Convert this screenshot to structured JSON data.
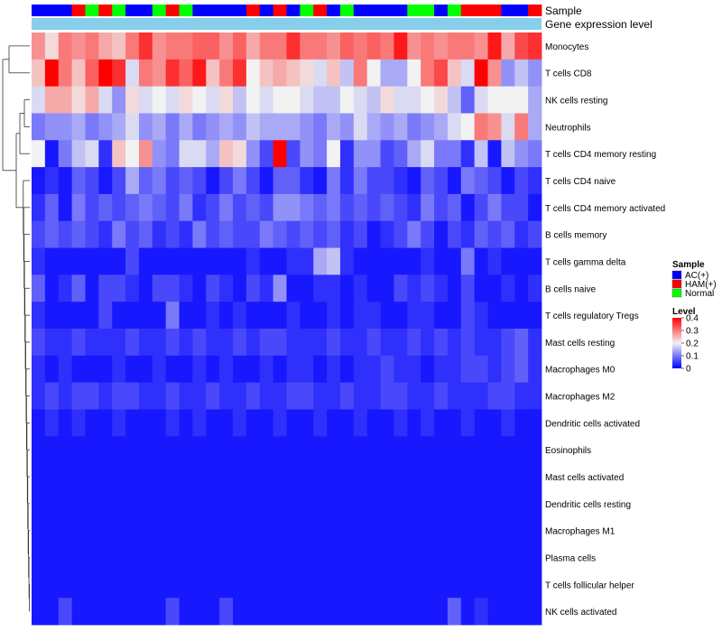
{
  "chart_data": {
    "type": "heatmap",
    "title": "",
    "annotation_tracks": [
      {
        "name": "Sample",
        "label": "Sample"
      },
      {
        "name": "Gene expression level",
        "label": "Gene expression level"
      }
    ],
    "row_labels": [
      "Monocytes",
      "T cells CD8",
      "NK cells resting",
      "Neutrophils",
      "T cells CD4 memory resting",
      "T cells CD4 naive",
      "T cells CD4 memory activated",
      "B cells memory",
      "T cells gamma delta",
      "B cells naive",
      "T cells regulatory  Tregs",
      "Mast cells resting",
      "Macrophages M0",
      "Macrophages M2",
      "Dendritic cells activated",
      "Eosinophils",
      "Mast cells activated",
      "Dendritic cells resting",
      "Macrophages M1",
      "Plasma cells",
      "T cells follicular helper",
      "NK cells activated"
    ],
    "sample_groups": [
      "AC",
      "AC",
      "AC",
      "HAM",
      "Normal",
      "HAM",
      "Normal",
      "AC",
      "AC",
      "Normal",
      "HAM",
      "Normal",
      "AC",
      "AC",
      "AC",
      "AC",
      "HAM",
      "AC",
      "HAM",
      "AC",
      "Normal",
      "HAM",
      "AC",
      "Normal",
      "AC",
      "AC",
      "AC",
      "AC",
      "Normal",
      "Normal",
      "AC",
      "Normal",
      "HAM",
      "HAM",
      "HAM",
      "AC",
      "AC",
      "HAM"
    ],
    "values": [
      [
        0.28,
        0.22,
        0.3,
        0.28,
        0.3,
        0.26,
        0.24,
        0.3,
        0.36,
        0.28,
        0.3,
        0.3,
        0.32,
        0.32,
        0.28,
        0.32,
        0.26,
        0.3,
        0.3,
        0.36,
        0.3,
        0.3,
        0.28,
        0.32,
        0.3,
        0.32,
        0.3,
        0.38,
        0.28,
        0.3,
        0.28,
        0.3,
        0.3,
        0.28,
        0.38,
        0.26,
        0.34,
        0.36
      ],
      [
        0.24,
        0.4,
        0.3,
        0.24,
        0.32,
        0.4,
        0.36,
        0.18,
        0.3,
        0.28,
        0.36,
        0.32,
        0.38,
        0.24,
        0.3,
        0.36,
        0.2,
        0.24,
        0.26,
        0.24,
        0.22,
        0.18,
        0.24,
        0.16,
        0.3,
        0.2,
        0.14,
        0.14,
        0.2,
        0.3,
        0.34,
        0.24,
        0.18,
        0.4,
        0.28,
        0.12,
        0.16,
        0.12
      ],
      [
        0.18,
        0.26,
        0.26,
        0.22,
        0.26,
        0.18,
        0.12,
        0.22,
        0.18,
        0.2,
        0.18,
        0.22,
        0.2,
        0.18,
        0.22,
        0.16,
        0.2,
        0.18,
        0.2,
        0.2,
        0.18,
        0.16,
        0.16,
        0.2,
        0.18,
        0.16,
        0.22,
        0.18,
        0.18,
        0.2,
        0.22,
        0.16,
        0.08,
        0.18,
        0.2,
        0.2,
        0.2,
        0.14
      ],
      [
        0.1,
        0.12,
        0.12,
        0.14,
        0.1,
        0.12,
        0.14,
        0.18,
        0.12,
        0.14,
        0.1,
        0.14,
        0.1,
        0.12,
        0.14,
        0.12,
        0.16,
        0.14,
        0.14,
        0.14,
        0.12,
        0.1,
        0.14,
        0.12,
        0.18,
        0.14,
        0.12,
        0.14,
        0.1,
        0.12,
        0.14,
        0.18,
        0.2,
        0.3,
        0.28,
        0.18,
        0.3,
        0.14
      ],
      [
        0.2,
        0.02,
        0.1,
        0.16,
        0.18,
        0.04,
        0.24,
        0.2,
        0.28,
        0.12,
        0.1,
        0.18,
        0.18,
        0.14,
        0.24,
        0.22,
        0.12,
        0.06,
        0.4,
        0.06,
        0.12,
        0.1,
        0.2,
        0.04,
        0.12,
        0.12,
        0.06,
        0.08,
        0.14,
        0.18,
        0.1,
        0.1,
        0.04,
        0.16,
        0.02,
        0.16,
        0.12,
        0.1
      ],
      [
        0.02,
        0.04,
        0.02,
        0.08,
        0.06,
        0.02,
        0.06,
        0.14,
        0.08,
        0.1,
        0.06,
        0.08,
        0.06,
        0.02,
        0.06,
        0.1,
        0.06,
        0.02,
        0.08,
        0.08,
        0.04,
        0.02,
        0.1,
        0.04,
        0.1,
        0.06,
        0.06,
        0.04,
        0.02,
        0.08,
        0.06,
        0.02,
        0.1,
        0.08,
        0.06,
        0.02,
        0.06,
        0.04
      ],
      [
        0.04,
        0.08,
        0.02,
        0.1,
        0.06,
        0.08,
        0.06,
        0.08,
        0.1,
        0.08,
        0.06,
        0.1,
        0.04,
        0.06,
        0.1,
        0.06,
        0.08,
        0.06,
        0.12,
        0.12,
        0.1,
        0.08,
        0.1,
        0.06,
        0.08,
        0.06,
        0.08,
        0.06,
        0.04,
        0.1,
        0.06,
        0.08,
        0.02,
        0.06,
        0.1,
        0.06,
        0.06,
        0.02
      ],
      [
        0.06,
        0.08,
        0.06,
        0.08,
        0.06,
        0.04,
        0.1,
        0.06,
        0.08,
        0.04,
        0.06,
        0.04,
        0.1,
        0.06,
        0.08,
        0.06,
        0.06,
        0.1,
        0.08,
        0.06,
        0.08,
        0.06,
        0.08,
        0.04,
        0.06,
        0.02,
        0.04,
        0.06,
        0.1,
        0.06,
        0.02,
        0.06,
        0.04,
        0.08,
        0.06,
        0.08,
        0.04,
        0.06
      ],
      [
        0.04,
        0.02,
        0.02,
        0.02,
        0.02,
        0.02,
        0.02,
        0.06,
        0.02,
        0.02,
        0.02,
        0.02,
        0.02,
        0.02,
        0.02,
        0.02,
        0.04,
        0.02,
        0.02,
        0.04,
        0.04,
        0.14,
        0.16,
        0.04,
        0.02,
        0.02,
        0.02,
        0.02,
        0.02,
        0.04,
        0.02,
        0.02,
        0.1,
        0.02,
        0.04,
        0.02,
        0.02,
        0.02
      ],
      [
        0.08,
        0.02,
        0.04,
        0.08,
        0.02,
        0.06,
        0.06,
        0.04,
        0.02,
        0.06,
        0.06,
        0.04,
        0.02,
        0.06,
        0.04,
        0.02,
        0.06,
        0.04,
        0.12,
        0.02,
        0.02,
        0.04,
        0.04,
        0.02,
        0.04,
        0.02,
        0.02,
        0.06,
        0.04,
        0.06,
        0.04,
        0.02,
        0.06,
        0.02,
        0.02,
        0.04,
        0.02,
        0.04
      ],
      [
        0.04,
        0.02,
        0.02,
        0.02,
        0.02,
        0.06,
        0.02,
        0.02,
        0.02,
        0.02,
        0.1,
        0.02,
        0.02,
        0.04,
        0.02,
        0.04,
        0.02,
        0.02,
        0.02,
        0.04,
        0.02,
        0.02,
        0.04,
        0.02,
        0.04,
        0.04,
        0.02,
        0.02,
        0.04,
        0.04,
        0.02,
        0.02,
        0.06,
        0.04,
        0.02,
        0.02,
        0.02,
        0.02
      ],
      [
        0.06,
        0.04,
        0.04,
        0.06,
        0.04,
        0.04,
        0.04,
        0.06,
        0.04,
        0.04,
        0.06,
        0.04,
        0.06,
        0.04,
        0.04,
        0.06,
        0.04,
        0.06,
        0.06,
        0.04,
        0.04,
        0.04,
        0.06,
        0.04,
        0.04,
        0.06,
        0.04,
        0.04,
        0.06,
        0.04,
        0.06,
        0.04,
        0.06,
        0.04,
        0.04,
        0.06,
        0.08,
        0.04
      ],
      [
        0.04,
        0.02,
        0.04,
        0.02,
        0.02,
        0.02,
        0.04,
        0.02,
        0.02,
        0.04,
        0.02,
        0.02,
        0.04,
        0.02,
        0.04,
        0.02,
        0.02,
        0.04,
        0.02,
        0.04,
        0.04,
        0.02,
        0.04,
        0.02,
        0.04,
        0.04,
        0.06,
        0.04,
        0.04,
        0.02,
        0.04,
        0.04,
        0.06,
        0.06,
        0.04,
        0.06,
        0.08,
        0.04
      ],
      [
        0.04,
        0.06,
        0.04,
        0.06,
        0.06,
        0.04,
        0.06,
        0.06,
        0.04,
        0.04,
        0.06,
        0.04,
        0.04,
        0.06,
        0.04,
        0.04,
        0.06,
        0.04,
        0.04,
        0.06,
        0.06,
        0.04,
        0.04,
        0.06,
        0.04,
        0.04,
        0.06,
        0.06,
        0.04,
        0.04,
        0.06,
        0.04,
        0.04,
        0.04,
        0.06,
        0.06,
        0.04,
        0.04
      ],
      [
        0.02,
        0.04,
        0.02,
        0.04,
        0.02,
        0.02,
        0.04,
        0.02,
        0.02,
        0.02,
        0.04,
        0.02,
        0.04,
        0.02,
        0.02,
        0.04,
        0.02,
        0.02,
        0.04,
        0.02,
        0.02,
        0.04,
        0.02,
        0.02,
        0.04,
        0.02,
        0.02,
        0.04,
        0.02,
        0.04,
        0.02,
        0.02,
        0.04,
        0.02,
        0.02,
        0.04,
        0.02,
        0.02
      ],
      [
        0.02,
        0.02,
        0.02,
        0.02,
        0.02,
        0.02,
        0.02,
        0.02,
        0.02,
        0.02,
        0.02,
        0.02,
        0.02,
        0.02,
        0.02,
        0.02,
        0.02,
        0.02,
        0.02,
        0.02,
        0.02,
        0.02,
        0.02,
        0.02,
        0.02,
        0.02,
        0.02,
        0.02,
        0.02,
        0.02,
        0.02,
        0.02,
        0.02,
        0.02,
        0.02,
        0.02,
        0.02,
        0.02
      ],
      [
        0.02,
        0.02,
        0.02,
        0.02,
        0.02,
        0.02,
        0.02,
        0.02,
        0.02,
        0.02,
        0.02,
        0.02,
        0.02,
        0.02,
        0.02,
        0.02,
        0.02,
        0.02,
        0.02,
        0.02,
        0.02,
        0.02,
        0.02,
        0.02,
        0.02,
        0.02,
        0.02,
        0.02,
        0.02,
        0.02,
        0.02,
        0.02,
        0.02,
        0.02,
        0.02,
        0.02,
        0.02,
        0.02
      ],
      [
        0.02,
        0.02,
        0.02,
        0.02,
        0.02,
        0.02,
        0.02,
        0.02,
        0.02,
        0.02,
        0.02,
        0.02,
        0.02,
        0.02,
        0.02,
        0.02,
        0.02,
        0.02,
        0.02,
        0.02,
        0.02,
        0.02,
        0.02,
        0.02,
        0.02,
        0.02,
        0.02,
        0.02,
        0.02,
        0.02,
        0.02,
        0.02,
        0.02,
        0.02,
        0.02,
        0.02,
        0.02,
        0.02
      ],
      [
        0.02,
        0.02,
        0.02,
        0.02,
        0.02,
        0.02,
        0.02,
        0.02,
        0.02,
        0.02,
        0.02,
        0.02,
        0.02,
        0.02,
        0.02,
        0.02,
        0.02,
        0.02,
        0.02,
        0.02,
        0.02,
        0.02,
        0.02,
        0.02,
        0.02,
        0.02,
        0.02,
        0.02,
        0.02,
        0.02,
        0.02,
        0.02,
        0.02,
        0.02,
        0.02,
        0.02,
        0.02,
        0.02
      ],
      [
        0.02,
        0.02,
        0.02,
        0.02,
        0.02,
        0.02,
        0.02,
        0.02,
        0.02,
        0.02,
        0.02,
        0.02,
        0.02,
        0.02,
        0.02,
        0.02,
        0.02,
        0.02,
        0.02,
        0.02,
        0.02,
        0.02,
        0.02,
        0.02,
        0.02,
        0.02,
        0.02,
        0.02,
        0.02,
        0.02,
        0.02,
        0.02,
        0.02,
        0.02,
        0.02,
        0.02,
        0.02,
        0.02
      ],
      [
        0.02,
        0.02,
        0.02,
        0.02,
        0.02,
        0.02,
        0.02,
        0.02,
        0.02,
        0.02,
        0.02,
        0.02,
        0.02,
        0.02,
        0.02,
        0.02,
        0.02,
        0.02,
        0.02,
        0.02,
        0.02,
        0.02,
        0.02,
        0.02,
        0.02,
        0.02,
        0.02,
        0.02,
        0.02,
        0.02,
        0.02,
        0.02,
        0.02,
        0.02,
        0.02,
        0.02,
        0.02,
        0.02
      ],
      [
        0.02,
        0.02,
        0.06,
        0.02,
        0.02,
        0.02,
        0.02,
        0.02,
        0.02,
        0.02,
        0.06,
        0.02,
        0.02,
        0.02,
        0.06,
        0.02,
        0.02,
        0.02,
        0.02,
        0.02,
        0.02,
        0.02,
        0.02,
        0.02,
        0.02,
        0.02,
        0.02,
        0.02,
        0.02,
        0.02,
        0.02,
        0.08,
        0.02,
        0.04,
        0.02,
        0.02,
        0.02,
        0.02
      ]
    ],
    "legends": {
      "sample": {
        "title": "Sample",
        "entries": [
          {
            "key": "AC",
            "label": "AC(+)",
            "color": "#0000ff"
          },
          {
            "key": "HAM",
            "label": "HAM(+)",
            "color": "#ff0000"
          },
          {
            "key": "Normal",
            "label": "Normal",
            "color": "#00ff00"
          }
        ]
      },
      "level": {
        "title": "Level",
        "ticks": [
          0.4,
          0.3,
          0.2,
          0.1,
          0
        ],
        "tick_labels": [
          "0.4",
          "0.3",
          "0.2",
          "0.1",
          "0"
        ],
        "range": [
          0,
          0.4
        ],
        "colors": {
          "low": "#0000ff",
          "mid": "#f2f2f2",
          "high": "#ff0000"
        }
      }
    },
    "gene_expression_color": "#87ceeb",
    "dendrogram": "row clustering (hierarchical)"
  }
}
